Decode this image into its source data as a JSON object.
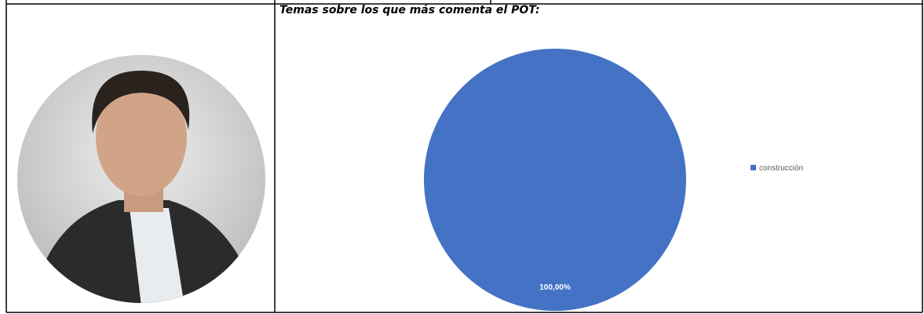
{
  "heading": "Temas sobre los que más comenta el POT:",
  "chart_data": {
    "type": "pie",
    "categories": [
      "construcción"
    ],
    "values": [
      100
    ],
    "value_labels": [
      "100,00%"
    ],
    "colors": [
      "#4472c4"
    ],
    "legend": "right"
  }
}
